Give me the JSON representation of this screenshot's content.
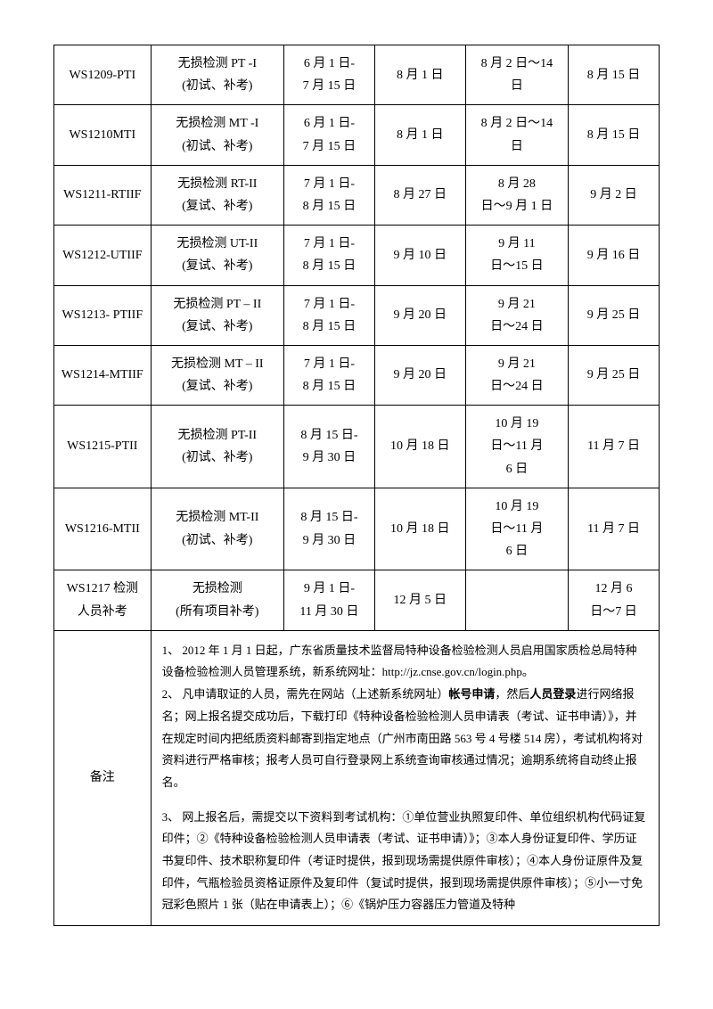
{
  "rows": [
    {
      "code": "WS1209-PTI",
      "name_line1": "无损检测 PT -I",
      "name_line2": "(初试、补考)",
      "date1_line1": "6 月 1 日-",
      "date1_line2": "7 月 15 日",
      "date2": "8 月 1 日",
      "date3_line1": "8 月 2 日～14",
      "date3_line2": "日",
      "date4": "8 月 15 日"
    },
    {
      "code": "WS1210MTI",
      "name_line1": "无损检测 MT -I",
      "name_line2": "(初试、补考)",
      "date1_line1": "6 月 1 日-",
      "date1_line2": "7 月 15 日",
      "date2": "8 月 1 日",
      "date3_line1": "8 月 2 日～14",
      "date3_line2": "日",
      "date4": "8 月 15 日"
    },
    {
      "code": "WS1211-RTIIF",
      "name_line1": "无损检测 RT-II",
      "name_line2": "(复试、补考)",
      "date1_line1": "7 月 1 日-",
      "date1_line2": "8 月 15 日",
      "date2": "8 月 27 日",
      "date3_line1": "8 月 28",
      "date3_line2": "日～9 月 1 日",
      "date4": "9 月 2 日"
    },
    {
      "code": "WS1212-UTIIF",
      "name_line1": "无损检测 UT-II",
      "name_line2": "(复试、补考)",
      "date1_line1": "7 月 1 日-",
      "date1_line2": "8 月 15 日",
      "date2": "9 月 10 日",
      "date3_line1": "9 月 11",
      "date3_line2": "日～15 日",
      "date4": "9 月 16 日"
    },
    {
      "code": "WS1213- PTIIF",
      "name_line1": "无损检测 PT – II",
      "name_line2": "(复试、补考)",
      "date1_line1": "7 月 1 日-",
      "date1_line2": "8 月 15 日",
      "date2": "9 月 20 日",
      "date3_line1": "9 月 21",
      "date3_line2": "日～24 日",
      "date4": "9 月 25 日"
    },
    {
      "code": "WS1214-MTIIF",
      "name_line1": "无损检测 MT – II",
      "name_line2": "(复试、补考)",
      "date1_line1": "7 月 1 日-",
      "date1_line2": "8 月 15 日",
      "date2": "9 月 20 日",
      "date3_line1": "9 月 21",
      "date3_line2": "日～24 日",
      "date4": "9 月 25 日"
    },
    {
      "code": "WS1215-PTII",
      "name_line1": "无损检测 PT-II",
      "name_line2": "(初试、补考)",
      "date1_line1": "8 月 15 日-",
      "date1_line2": "9 月 30 日",
      "date2": "10 月 18 日",
      "date3_line1": "10 月 19",
      "date3_line2": "日～11 月",
      "date3_line3": "6 日",
      "date4": "11 月 7 日"
    },
    {
      "code": "WS1216-MTII",
      "name_line1": "无损检测 MT-II",
      "name_line2": "(初试、补考)",
      "date1_line1": "8 月 15 日-",
      "date1_line2": "9 月 30 日",
      "date2": "10 月 18 日",
      "date3_line1": "10 月 19",
      "date3_line2": "日～11 月",
      "date3_line3": "6 日",
      "date4": "11 月 7 日"
    },
    {
      "code_line1": "WS1217 检测",
      "code_line2": "人员补考",
      "name_line1": "无损检测",
      "name_line2": "(所有项目补考)",
      "date1_line1": "9 月 1 日-",
      "date1_line2": "11 月 30 日",
      "date2": "12 月 5 日",
      "date3_line1": "",
      "date4_line1": "12 月 6",
      "date4_line2": "日～7 日"
    }
  ],
  "notes_label": "备注",
  "notes": {
    "p1": "1、 2012 年 1 月 1 日起，广东省质量技术监督局特种设备检验检测人员启用国家质检总局特种设备检验检测人员管理系统，新系统网址：http://jz.cnse.gov.cn/login.php。",
    "p2_a": "2、 凡申请取证的人员，需先在网站（上述新系统网址）",
    "p2_bold1": "帐号申请",
    "p2_b": "，然后",
    "p2_bold2": "人员登录",
    "p2_c": "进行网络报名；网上报名提交成功后，下载打印《特种设备检验检测人员申请表（考试、证书申请）》，并在规定时间内把纸质资料邮寄到指定地点（广州市南田路 563 号 4 号楼 514 房），考试机构将对资料进行严格审核；报考人员可自行登录网上系统查询审核通过情况；逾期系统将自动终止报名。",
    "p3": "3、 网上报名后，需提交以下资料到考试机构：①单位营业执照复印件、单位组织机构代码证复印件；②《特种设备检验检测人员申请表（考试、证书申请）》；③本人身份证复印件、学历证书复印件、技术职称复印件（考证时提供，报到现场需提供原件审核）；④本人身份证原件及复印件，气瓶检验员资格证原件及复印件（复试时提供，报到现场需提供原件审核）；⑤小一寸免冠彩色照片 1 张（贴在申请表上）；⑥《锅炉压力容器压力管道及特种"
  }
}
